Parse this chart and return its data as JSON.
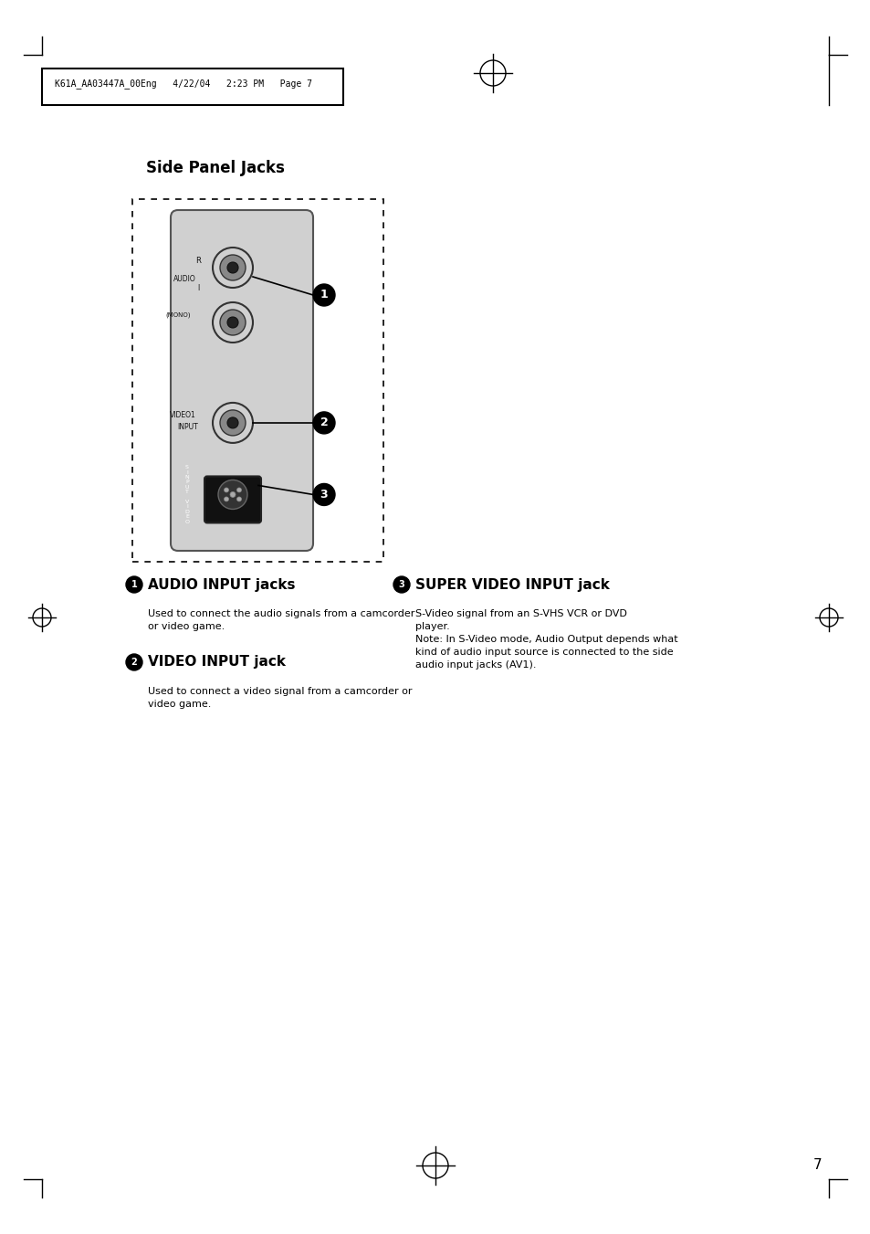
{
  "bg_color": "#ffffff",
  "page_header": "K61A_AA03447A_00Eng   4/22/04   2:23 PM   Page 7",
  "title": "Side Panel Jacks",
  "section1_header": "AUDIO INPUT jacks",
  "section1_num": "①",
  "section1_body": "Used to connect the audio signals from a camcorder\nor video game.",
  "section2_header": "VIDEO INPUT jack",
  "section2_num": "②",
  "section2_body": "Used to connect a video signal from a camcorder or\nvideo game.",
  "section3_header": "SUPER VIDEO INPUT jack",
  "section3_num": "③",
  "section3_body": "S-Video signal from an S-VHS VCR or DVD\nplayer.\nNote: In S-Video mode, Audio Output depends what\nkind of audio input source is connected to the side\naudio input jacks (AV1).",
  "page_number": "7"
}
